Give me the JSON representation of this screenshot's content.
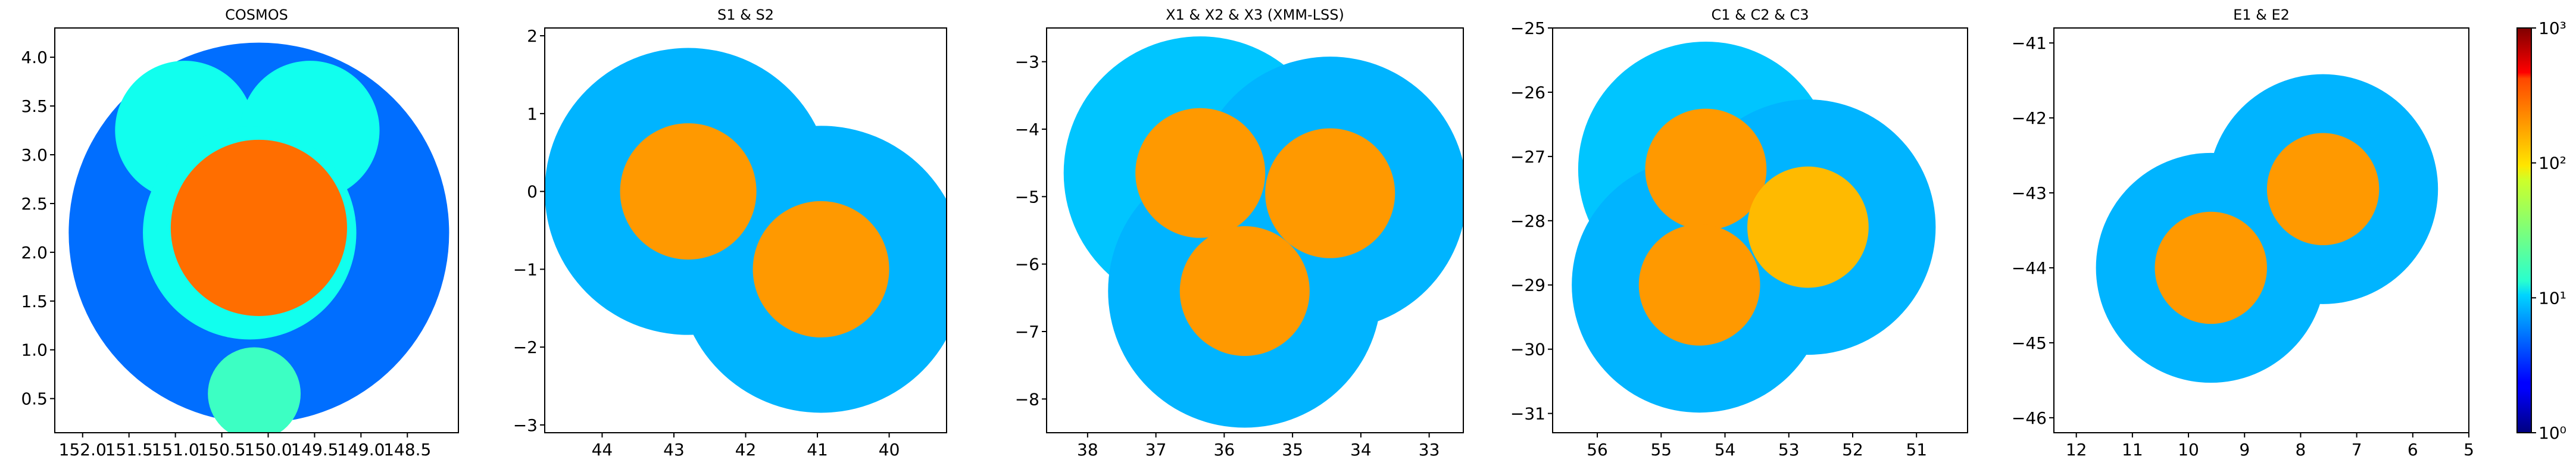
{
  "figure": {
    "colorbar": {
      "scale": "log",
      "range": [
        1,
        1000
      ],
      "tick_labels": [
        "10⁰",
        "10¹",
        "10²",
        "10³"
      ],
      "colormap": "jet"
    }
  },
  "chart_data": [
    {
      "type": "heatmap",
      "title": "COSMOS",
      "xlim": [
        152.3,
        147.95
      ],
      "ylim": [
        0.15,
        4.3
      ],
      "x_ticks": [
        "152.0",
        "151.5",
        "151.0",
        "150.5",
        "150.0",
        "149.5",
        "149.0",
        "148.5"
      ],
      "y_ticks": [
        "0.5",
        "1.0",
        "1.5",
        "2.0",
        "2.5",
        "3.0",
        "3.5",
        "4.0"
      ],
      "footprints": [
        {
          "ra": 150.1,
          "dec": 2.2,
          "radius": 2.05,
          "level": 5
        },
        {
          "ra": 150.9,
          "dec": 3.25,
          "radius": 0.75,
          "level": 15
        },
        {
          "ra": 149.55,
          "dec": 3.25,
          "radius": 0.75,
          "level": 15
        },
        {
          "ra": 150.2,
          "dec": 2.2,
          "radius": 1.15,
          "level": 15
        },
        {
          "ra": 150.1,
          "dec": 2.25,
          "radius": 0.95,
          "level": 200
        },
        {
          "ra": 150.15,
          "dec": 0.55,
          "radius": 0.5,
          "level": 20
        }
      ]
    },
    {
      "type": "heatmap",
      "title": "S1 & S2",
      "xlim": [
        44.8,
        39.2
      ],
      "ylim": [
        -3.1,
        2.1
      ],
      "x_ticks": [
        "44",
        "43",
        "42",
        "41",
        "40"
      ],
      "y_ticks": [
        "2",
        "1",
        "0",
        "−1",
        "−2",
        "−3"
      ],
      "footprints": [
        {
          "ra": 42.8,
          "dec": 0.0,
          "radius": 2.0,
          "level": 8
        },
        {
          "ra": 40.95,
          "dec": -1.0,
          "radius": 2.0,
          "level": 8
        },
        {
          "ra": 42.8,
          "dec": 0.0,
          "radius": 0.95,
          "level": 150
        },
        {
          "ra": 40.95,
          "dec": -1.0,
          "radius": 0.95,
          "level": 150
        }
      ]
    },
    {
      "type": "heatmap",
      "title": "X1 & X2 & X3 (XMM-LSS)",
      "xlim": [
        38.6,
        32.5
      ],
      "ylim": [
        -8.5,
        -2.5
      ],
      "x_ticks": [
        "38",
        "37",
        "36",
        "35",
        "34",
        "33"
      ],
      "y_ticks": [
        "−3",
        "−4",
        "−5",
        "−6",
        "−7",
        "−8"
      ],
      "footprints": [
        {
          "ra": 36.35,
          "dec": -4.65,
          "radius": 2.0,
          "level": 9
        },
        {
          "ra": 34.45,
          "dec": -4.95,
          "radius": 2.0,
          "level": 8
        },
        {
          "ra": 35.7,
          "dec": -6.4,
          "radius": 2.0,
          "level": 8
        },
        {
          "ra": 36.35,
          "dec": -4.65,
          "radius": 0.95,
          "level": 150
        },
        {
          "ra": 34.45,
          "dec": -4.95,
          "radius": 0.95,
          "level": 150
        },
        {
          "ra": 35.7,
          "dec": -6.4,
          "radius": 0.95,
          "level": 150
        }
      ]
    },
    {
      "type": "heatmap",
      "title": "C1 & C2 & C3",
      "xlim": [
        56.7,
        50.2
      ],
      "ylim": [
        -31.3,
        -25.0
      ],
      "x_ticks": [
        "56",
        "55",
        "54",
        "53",
        "52",
        "51"
      ],
      "y_ticks": [
        "−25",
        "−26",
        "−27",
        "−28",
        "−29",
        "−30",
        "−31"
      ],
      "footprints": [
        {
          "ra": 54.3,
          "dec": -27.2,
          "radius": 2.0,
          "level": 9
        },
        {
          "ra": 52.7,
          "dec": -28.1,
          "radius": 2.0,
          "level": 8
        },
        {
          "ra": 54.4,
          "dec": -29.0,
          "radius": 2.0,
          "level": 8
        },
        {
          "ra": 54.3,
          "dec": -27.2,
          "radius": 0.95,
          "level": 150
        },
        {
          "ra": 52.7,
          "dec": -28.1,
          "radius": 0.95,
          "level": 120
        },
        {
          "ra": 54.4,
          "dec": -29.0,
          "radius": 0.95,
          "level": 150
        }
      ]
    },
    {
      "type": "heatmap",
      "title": "E1 & E2",
      "xlim": [
        12.4,
        5.0
      ],
      "ylim": [
        -46.2,
        -40.8
      ],
      "x_ticks": [
        "12",
        "11",
        "10",
        "9",
        "8",
        "7",
        "6",
        "5"
      ],
      "y_ticks": [
        "−41",
        "−42",
        "−43",
        "−44",
        "−45",
        "−46"
      ],
      "footprints": [
        {
          "ra": 9.6,
          "dec": -44.0,
          "radius": 2.05,
          "level": 8
        },
        {
          "ra": 7.6,
          "dec": -42.95,
          "radius": 2.05,
          "level": 8
        },
        {
          "ra": 9.6,
          "dec": -44.0,
          "radius": 1.0,
          "level": 150
        },
        {
          "ra": 7.6,
          "dec": -42.95,
          "radius": 1.0,
          "level": 150
        }
      ]
    }
  ]
}
